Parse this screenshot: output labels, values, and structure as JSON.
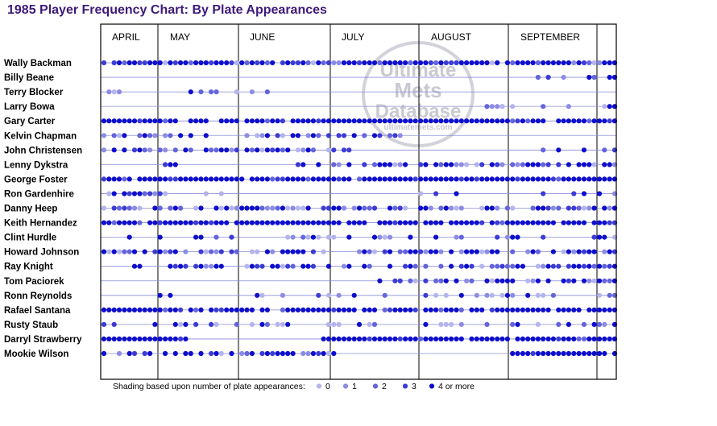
{
  "title": "1985 Player Frequency Chart: By Plate Appearances",
  "watermark": {
    "line1": "Ultimate",
    "line2": "Mets",
    "line3": "Database",
    "line4": "ultimatemets.com"
  },
  "legend": {
    "caption": "Shading based upon number of plate appearances:",
    "items": [
      {
        "label": "0",
        "color": "#b4b4ee"
      },
      {
        "label": "1",
        "color": "#8c8ce4"
      },
      {
        "label": "2",
        "color": "#6464dc"
      },
      {
        "label": "3",
        "color": "#3c3cd4"
      },
      {
        "label": "4 or more",
        "color": "#0e0ecc"
      }
    ]
  },
  "chart_data": {
    "type": "scatter",
    "title": "1985 Player Frequency Chart: By Plate Appearances",
    "months": [
      "APRIL",
      "MAY",
      "JUNE",
      "JULY",
      "AUGUST",
      "SEPTEMBER"
    ],
    "players": [
      {
        "name": "Wally Backman",
        "segments": [
          [
            0,
            100,
            "a"
          ]
        ]
      },
      {
        "name": "Billy Beane",
        "segments": [
          [
            85,
            87,
            "m"
          ],
          [
            87,
            96,
            "s"
          ],
          [
            99,
            100,
            "f"
          ]
        ]
      },
      {
        "name": "Terry Blocker",
        "segments": [
          [
            1,
            3,
            "l"
          ],
          [
            17,
            22,
            "s"
          ],
          [
            26,
            32,
            "s"
          ]
        ]
      },
      {
        "name": "Larry Bowa",
        "segments": [
          [
            75,
            78,
            "m"
          ],
          [
            78,
            100,
            "s"
          ]
        ]
      },
      {
        "name": "Gary Carter",
        "segments": [
          [
            0,
            100,
            "f"
          ]
        ]
      },
      {
        "name": "Kelvin Chapman",
        "segments": [
          [
            0,
            20,
            "m"
          ],
          [
            28,
            58,
            "m"
          ]
        ]
      },
      {
        "name": "John Christensen",
        "segments": [
          [
            0,
            48,
            "m"
          ],
          [
            86,
            100,
            "s"
          ]
        ]
      },
      {
        "name": "Lenny Dykstra",
        "segments": [
          [
            12,
            14,
            "f"
          ],
          [
            38,
            42,
            "s"
          ],
          [
            45,
            100,
            "m"
          ]
        ]
      },
      {
        "name": "George Foster",
        "segments": [
          [
            0,
            100,
            "f"
          ]
        ]
      },
      {
        "name": "Ron Gardenhire",
        "segments": [
          [
            1,
            12,
            "m"
          ],
          [
            20,
            23,
            "s"
          ],
          [
            62,
            69,
            "s"
          ],
          [
            86,
            100,
            "s"
          ]
        ]
      },
      {
        "name": "Danny Heep",
        "segments": [
          [
            0,
            100,
            "m"
          ]
        ]
      },
      {
        "name": "Keith Hernandez",
        "segments": [
          [
            0,
            100,
            "f"
          ]
        ]
      },
      {
        "name": "Clint Hurdle",
        "segments": [
          [
            5,
            48,
            "s"
          ],
          [
            53,
            100,
            "s"
          ]
        ]
      },
      {
        "name": "Howard Johnson",
        "segments": [
          [
            0,
            100,
            "m"
          ]
        ]
      },
      {
        "name": "Ray Knight",
        "segments": [
          [
            6,
            100,
            "m"
          ]
        ]
      },
      {
        "name": "Tom Paciorek",
        "segments": [
          [
            54,
            100,
            "m"
          ]
        ]
      },
      {
        "name": "Ronn Reynolds",
        "segments": [
          [
            11,
            13,
            "s"
          ],
          [
            30,
            100,
            "s"
          ]
        ]
      },
      {
        "name": "Rafael Santana",
        "segments": [
          [
            0,
            100,
            "f"
          ]
        ]
      },
      {
        "name": "Rusty Staub",
        "segments": [
          [
            0,
            100,
            "s"
          ]
        ]
      },
      {
        "name": "Darryl Strawberry",
        "segments": [
          [
            0,
            16,
            "f"
          ],
          [
            43,
            100,
            "f"
          ]
        ]
      },
      {
        "name": "Mookie Wilson",
        "segments": [
          [
            0,
            45,
            "m"
          ],
          [
            80,
            100,
            "f"
          ]
        ]
      }
    ],
    "series": [
      {
        "name": "0",
        "color": "#b4b4ee"
      },
      {
        "name": "1",
        "color": "#8c8ce4"
      },
      {
        "name": "2",
        "color": "#6464dc"
      },
      {
        "name": "3",
        "color": "#3c3cd4"
      },
      {
        "name": "4 or more",
        "color": "#0e0ecc"
      }
    ]
  }
}
